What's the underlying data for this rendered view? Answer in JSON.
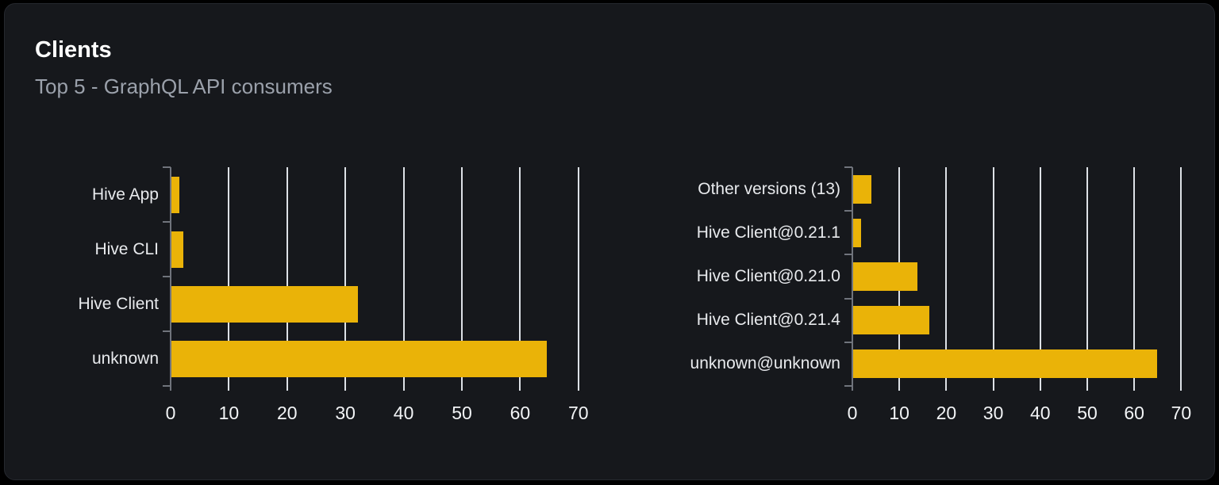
{
  "card": {
    "title": "Clients",
    "subtitle": "Top 5 - GraphQL API consumers"
  },
  "colors": {
    "page_bg": "#000000",
    "card_bg": "#16181c",
    "card_border": "#25282e",
    "bar": "#eab308",
    "grid": "#dde1e6",
    "axis": "#70747c",
    "title": "#ffffff",
    "subtitle": "#9ba1ab",
    "category_label": "#e8eaed",
    "tick_label": "#f2f4f6"
  },
  "chart_data": [
    {
      "type": "bar",
      "orientation": "horizontal",
      "name": "clients-by-name",
      "categories": [
        "Hive App",
        "Hive CLI",
        "Hive Client",
        "unknown"
      ],
      "values": [
        1.4,
        2.1,
        32,
        64.4
      ],
      "xlim": [
        0,
        70
      ],
      "xticks": [
        0,
        10,
        20,
        30,
        40,
        50,
        60,
        70
      ],
      "grid": true,
      "legend": false,
      "xlabel": "",
      "ylabel": ""
    },
    {
      "type": "bar",
      "orientation": "horizontal",
      "name": "clients-by-version",
      "categories": [
        "Other versions (13)",
        "Hive Client@0.21.1",
        "Hive Client@0.21.0",
        "Hive Client@0.21.4",
        "unknown@unknown"
      ],
      "values": [
        3.9,
        1.7,
        13.7,
        16.3,
        64.7
      ],
      "xlim": [
        0,
        70
      ],
      "xticks": [
        0,
        10,
        20,
        30,
        40,
        50,
        60,
        70
      ],
      "grid": true,
      "legend": false,
      "xlabel": "",
      "ylabel": ""
    }
  ]
}
